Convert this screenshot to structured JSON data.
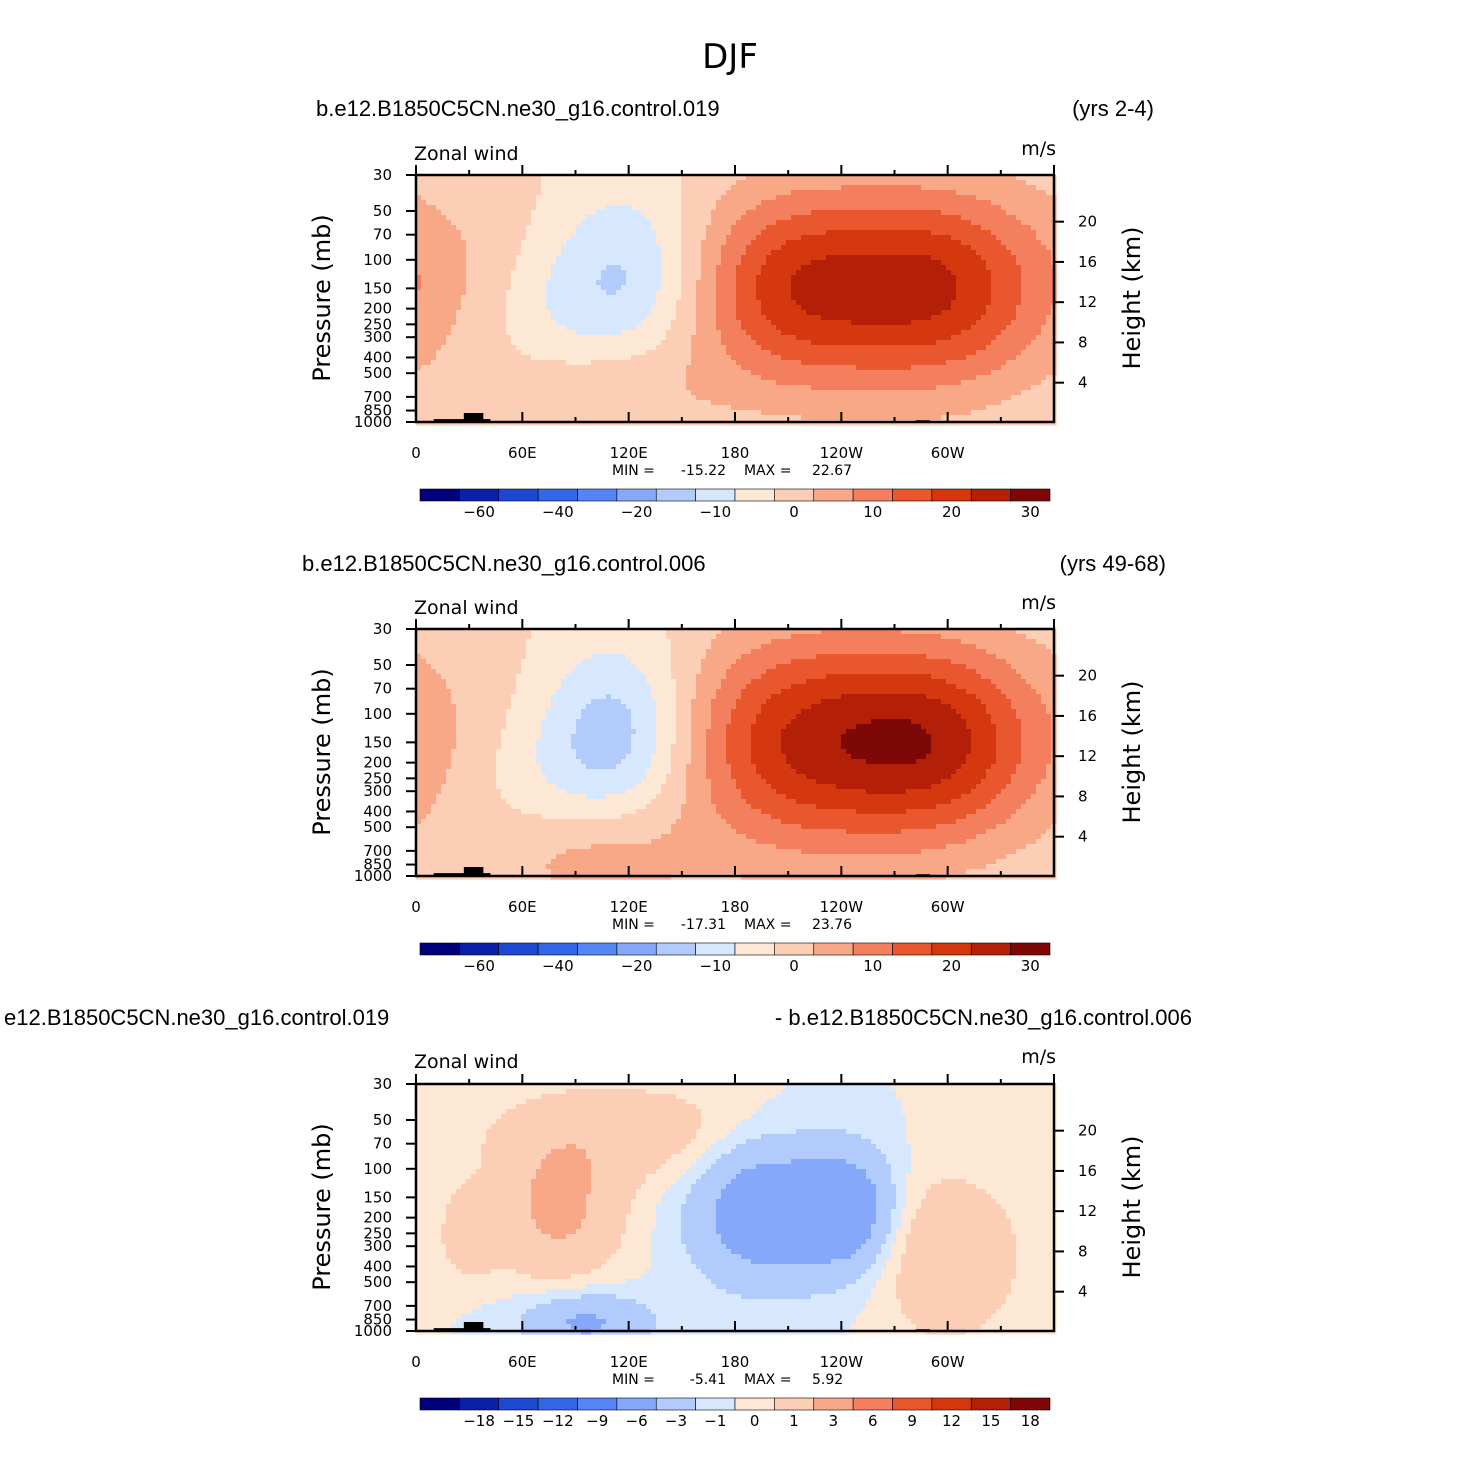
{
  "title": "DJF",
  "chart_data": [
    {
      "type": "heatmap",
      "case_name": "b.e12.B1850C5CN.ne30_g16.control.019",
      "years": "(yrs 2-4)",
      "variable": "Zonal wind",
      "units": "m/s",
      "xlabel": "",
      "ylabel": "Pressure (mb)",
      "ylabel_right": "Height (km)",
      "x_ticks": [
        "0",
        "60E",
        "120E",
        "180",
        "120W",
        "60W"
      ],
      "y_ticks": [
        "30",
        "50",
        "70",
        "100",
        "150",
        "200",
        "250",
        "300",
        "400",
        "500",
        "700",
        "850",
        "1000"
      ],
      "y_ticks_right": [
        "20",
        "16",
        "12",
        "8",
        "4"
      ],
      "min_label": "MIN =",
      "min_value": "-15.22",
      "max_label": "MAX =",
      "max_value": "22.67",
      "levels": [
        -70,
        -60,
        -50,
        -40,
        -30,
        -20,
        -15,
        -10,
        -5,
        0,
        5,
        10,
        15,
        20,
        25,
        30,
        35
      ],
      "colorbar_labels": [
        "−60",
        "−40",
        "−20",
        "−10",
        "0",
        "10",
        "20",
        "30"
      ],
      "features": [
        {
          "lon": 215,
          "pres": 150,
          "value": 22.67,
          "sx": 45,
          "sy": 1.0
        },
        {
          "lon": 298,
          "pres": 150,
          "value": 22.0,
          "sx": 42,
          "sy": 1.0
        },
        {
          "lon": 120,
          "pres": 130,
          "value": -12.0,
          "sx": 32,
          "sy": 0.9
        },
        {
          "lon": 110,
          "pres": 650,
          "value": 6.0,
          "sx": 40,
          "sy": 0.6
        },
        {
          "lon": 30,
          "pres": 120,
          "value": 4.0,
          "sx": 40,
          "sy": 1.1
        },
        {
          "lon": 70,
          "pres": 220,
          "value": -4.0,
          "sx": 28,
          "sy": 0.7
        }
      ]
    },
    {
      "type": "heatmap",
      "case_name": "b.e12.B1850C5CN.ne30_g16.control.006",
      "years": "(yrs 49-68)",
      "variable": "Zonal wind",
      "units": "m/s",
      "xlabel": "",
      "ylabel": "Pressure (mb)",
      "ylabel_right": "Height (km)",
      "x_ticks": [
        "0",
        "60E",
        "120E",
        "180",
        "120W",
        "60W"
      ],
      "y_ticks": [
        "30",
        "50",
        "70",
        "100",
        "150",
        "200",
        "250",
        "300",
        "400",
        "500",
        "700",
        "850",
        "1000"
      ],
      "y_ticks_right": [
        "20",
        "16",
        "12",
        "8",
        "4"
      ],
      "min_label": "MIN =",
      "min_value": "-17.31",
      "max_label": "MAX =",
      "max_value": "23.76",
      "levels": [
        -70,
        -60,
        -50,
        -40,
        -30,
        -20,
        -15,
        -10,
        -5,
        0,
        5,
        10,
        15,
        20,
        25,
        30,
        35
      ],
      "colorbar_labels": [
        "−60",
        "−40",
        "−20",
        "−10",
        "0",
        "10",
        "20",
        "30"
      ],
      "features": [
        {
          "lon": 218,
          "pres": 150,
          "value": 23.76,
          "sx": 50,
          "sy": 1.1
        },
        {
          "lon": 298,
          "pres": 150,
          "value": 22.0,
          "sx": 42,
          "sy": 1.0
        },
        {
          "lon": 115,
          "pres": 130,
          "value": -14.0,
          "sx": 30,
          "sy": 0.9
        },
        {
          "lon": 100,
          "pres": 750,
          "value": 8.0,
          "sx": 40,
          "sy": 0.6
        },
        {
          "lon": 30,
          "pres": 120,
          "value": 3.0,
          "sx": 40,
          "sy": 1.1
        },
        {
          "lon": 70,
          "pres": 250,
          "value": -4.0,
          "sx": 30,
          "sy": 0.8
        }
      ]
    },
    {
      "type": "heatmap",
      "case_name": "e12.B1850C5CN.ne30_g16.control.019",
      "years": "- b.e12.B1850C5CN.ne30_g16.control.006",
      "variable": "Zonal wind",
      "units": "m/s",
      "xlabel": "",
      "ylabel": "Pressure (mb)",
      "ylabel_right": "Height (km)",
      "x_ticks": [
        "0",
        "60E",
        "120E",
        "180",
        "120W",
        "60W"
      ],
      "y_ticks": [
        "30",
        "50",
        "70",
        "100",
        "150",
        "200",
        "250",
        "300",
        "400",
        "500",
        "700",
        "850",
        "1000"
      ],
      "y_ticks_right": [
        "20",
        "16",
        "12",
        "8",
        "4"
      ],
      "min_label": "MIN =",
      "min_value": "-5.41",
      "max_label": "MAX =",
      "max_value": "5.92",
      "levels": [
        -21,
        -18,
        -15,
        -12,
        -9,
        -6,
        -3,
        -1,
        0,
        1,
        3,
        6,
        9,
        12,
        15,
        18,
        21
      ],
      "colorbar_labels": [
        "−18",
        "−15",
        "−12",
        "−9",
        "−6",
        "−3",
        "−1",
        "0",
        "1",
        "3",
        "6",
        "9",
        "12",
        "15",
        "18"
      ],
      "features": [
        {
          "lon": 198,
          "pres": 180,
          "value": -5.41,
          "sx": 28,
          "sy": 0.7
        },
        {
          "lon": 245,
          "pres": 180,
          "value": -4.5,
          "sx": 18,
          "sy": 0.6
        },
        {
          "lon": 80,
          "pres": 180,
          "value": 3.5,
          "sx": 25,
          "sy": 0.7
        },
        {
          "lon": 30,
          "pres": 250,
          "value": 2.5,
          "sx": 10,
          "sy": 0.4
        },
        {
          "lon": 300,
          "pres": 350,
          "value": 2.6,
          "sx": 28,
          "sy": 0.8
        },
        {
          "lon": 95,
          "pres": 880,
          "value": -3.5,
          "sx": 25,
          "sy": 0.3
        },
        {
          "lon": 120,
          "pres": 60,
          "value": 2.0,
          "sx": 55,
          "sy": 0.5
        }
      ]
    }
  ]
}
